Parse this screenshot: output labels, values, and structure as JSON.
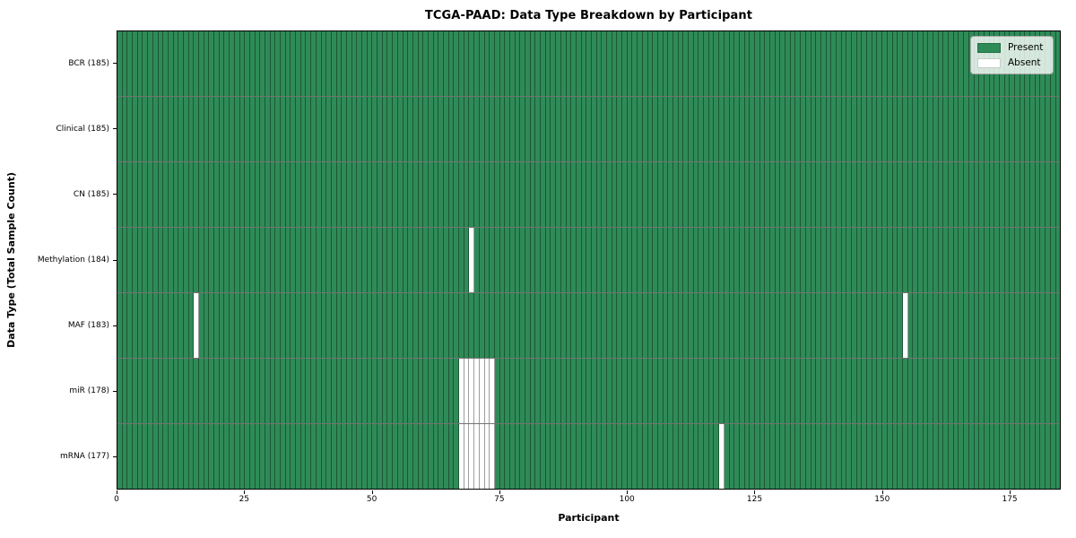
{
  "chart_data": {
    "type": "heatmap",
    "title": "TCGA-PAAD: Data Type Breakdown by Participant",
    "xlabel": "Participant",
    "ylabel": "Data Type (Total Sample Count)",
    "n_participants": 185,
    "xlim": [
      0,
      185
    ],
    "x_ticks": [
      0,
      25,
      50,
      75,
      100,
      125,
      150,
      175
    ],
    "grid": false,
    "legend_position": "upper-right",
    "legend": [
      {
        "label": "Present",
        "value": "present"
      },
      {
        "label": "Absent",
        "value": "absent"
      }
    ],
    "colors": {
      "present": "#2e8b57",
      "absent": "#ffffff"
    },
    "rows": [
      {
        "label": "BCR (185)",
        "data_type": "BCR",
        "total_samples": 185,
        "absent_participants": []
      },
      {
        "label": "Clinical (185)",
        "data_type": "Clinical",
        "total_samples": 185,
        "absent_participants": []
      },
      {
        "label": "CN (185)",
        "data_type": "CN",
        "total_samples": 185,
        "absent_participants": []
      },
      {
        "label": "Methylation (184)",
        "data_type": "Methylation",
        "total_samples": 184,
        "absent_participants": [
          69
        ]
      },
      {
        "label": "MAF (183)",
        "data_type": "MAF",
        "total_samples": 183,
        "absent_participants": [
          15,
          154
        ]
      },
      {
        "label": "miR (178)",
        "data_type": "miR",
        "total_samples": 178,
        "absent_participants": [
          67,
          68,
          69,
          70,
          71,
          72,
          73
        ]
      },
      {
        "label": "mRNA (177)",
        "data_type": "mRNA",
        "total_samples": 177,
        "absent_participants": [
          67,
          68,
          69,
          70,
          71,
          72,
          73,
          118
        ]
      }
    ]
  }
}
